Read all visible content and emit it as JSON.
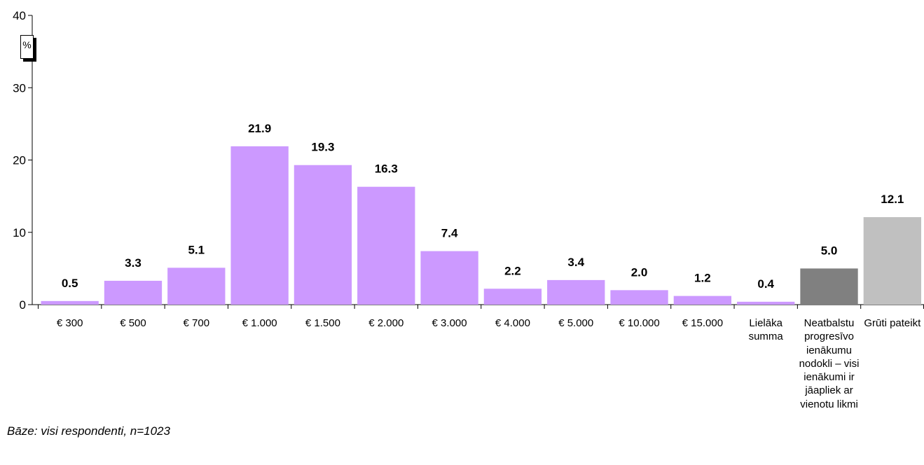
{
  "chart_data": {
    "type": "bar",
    "categories": [
      "€ 300",
      "€ 500",
      "€ 700",
      "€ 1.000",
      "€ 1.500",
      "€ 2.000",
      "€ 3.000",
      "€ 4.000",
      "€ 5.000",
      "€ 10.000",
      "€ 15.000",
      "Lielāka summa",
      "Neatbalstu progresīvo ienākumu nodokli – visi ienākumi ir jāapliek ar vienotu likmi",
      "Grūti pateikt"
    ],
    "values": [
      0.5,
      3.3,
      5.1,
      21.9,
      19.3,
      16.3,
      7.4,
      2.2,
      3.4,
      2.0,
      1.2,
      0.4,
      5.0,
      12.1
    ],
    "value_labels": [
      "0.5",
      "3.3",
      "5.1",
      "21.9",
      "19.3",
      "16.3",
      "7.4",
      "2.2",
      "3.4",
      "2.0",
      "1.2",
      "0.4",
      "5.0",
      "12.1"
    ],
    "bar_colors": [
      "#cc99ff",
      "#cc99ff",
      "#cc99ff",
      "#cc99ff",
      "#cc99ff",
      "#cc99ff",
      "#cc99ff",
      "#cc99ff",
      "#cc99ff",
      "#cc99ff",
      "#cc99ff",
      "#cc99ff",
      "#808080",
      "#c0c0c0"
    ],
    "ylim": [
      0,
      40
    ],
    "yticks": [
      "0",
      "10",
      "20",
      "30",
      "40"
    ],
    "ylabel": "%",
    "title": "",
    "xlabel": "",
    "grid": false,
    "legend": "none"
  },
  "note": "Bāze: visi respondenti, n=1023"
}
